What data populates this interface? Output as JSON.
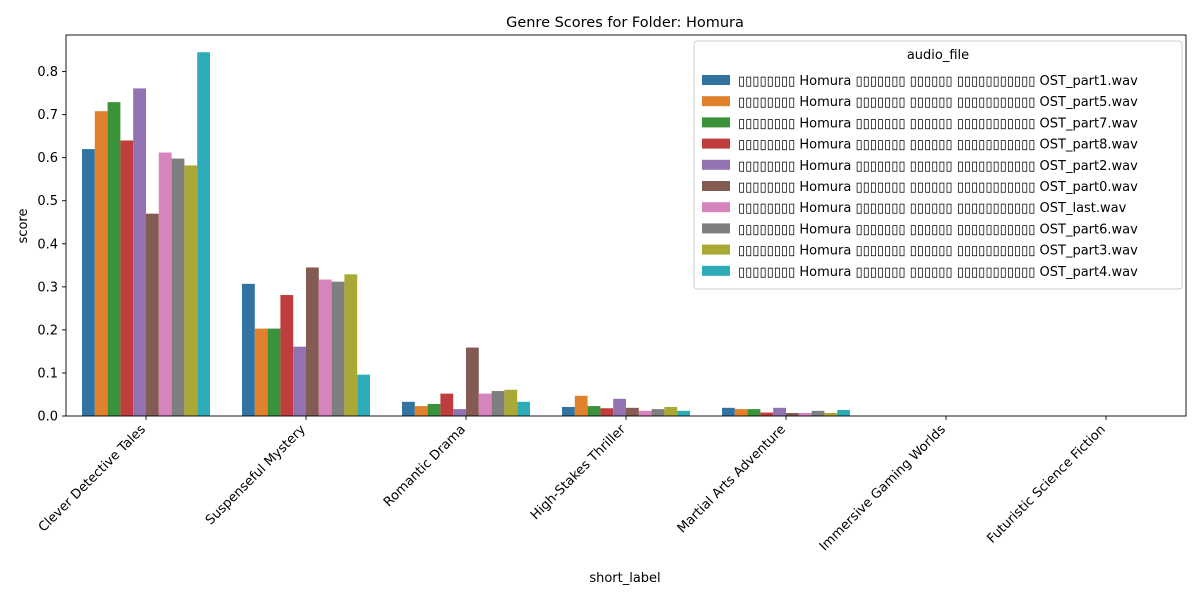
{
  "chart_data": {
    "type": "bar",
    "title": "Genre Scores for Folder: Homura",
    "xlabel": "short_label",
    "ylabel": "score",
    "ylim": [
      0,
      0.885
    ],
    "yticks": [
      0.0,
      0.1,
      0.2,
      0.3,
      0.4,
      0.5,
      0.6,
      0.7,
      0.8
    ],
    "grid": false,
    "legend_title": "audio_file",
    "legend_position": "top-right",
    "categories": [
      "Clever Detective Tales",
      "Suspenseful Mystery",
      "Romantic Drama",
      "High-Stakes Thriller",
      "Martial Arts Adventure",
      "Immersive Gaming Worlds",
      "Futuristic Science Fiction"
    ],
    "series": [
      {
        "name": "▯▯▯▯▯▯▯▯ Homura  ▯▯▯▯▯▯▯ ▯▯▯▯▯▯ ▯▯▯▯▯▯▯▯▯▯▯ OST_part1.wav",
        "color": "#3274a1",
        "values": [
          0.62,
          0.307,
          0.033,
          0.021,
          0.019,
          0.0,
          0.0
        ]
      },
      {
        "name": "▯▯▯▯▯▯▯▯ Homura  ▯▯▯▯▯▯▯ ▯▯▯▯▯▯ ▯▯▯▯▯▯▯▯▯▯▯ OST_part5.wav",
        "color": "#e1812c",
        "values": [
          0.708,
          0.203,
          0.023,
          0.047,
          0.016,
          0.0,
          0.0
        ]
      },
      {
        "name": "▯▯▯▯▯▯▯▯ Homura  ▯▯▯▯▯▯▯ ▯▯▯▯▯▯ ▯▯▯▯▯▯▯▯▯▯▯ OST_part7.wav",
        "color": "#3a923a",
        "values": [
          0.729,
          0.203,
          0.028,
          0.023,
          0.016,
          0.0,
          0.0
        ]
      },
      {
        "name": "▯▯▯▯▯▯▯▯ Homura  ▯▯▯▯▯▯▯ ▯▯▯▯▯▯ ▯▯▯▯▯▯▯▯▯▯▯ OST_part8.wav",
        "color": "#c03d3e",
        "values": [
          0.64,
          0.281,
          0.052,
          0.018,
          0.008,
          0.0,
          0.0
        ]
      },
      {
        "name": "▯▯▯▯▯▯▯▯ Homura  ▯▯▯▯▯▯▯ ▯▯▯▯▯▯ ▯▯▯▯▯▯▯▯▯▯▯ OST_part2.wav",
        "color": "#9372b2",
        "values": [
          0.761,
          0.161,
          0.016,
          0.04,
          0.019,
          0.0,
          0.0
        ]
      },
      {
        "name": "▯▯▯▯▯▯▯▯ Homura  ▯▯▯▯▯▯▯ ▯▯▯▯▯▯ ▯▯▯▯▯▯▯▯▯▯▯ OST_part0.wav",
        "color": "#845b53",
        "values": [
          0.47,
          0.345,
          0.159,
          0.019,
          0.007,
          0.0,
          0.0
        ]
      },
      {
        "name": "▯▯▯▯▯▯▯▯ Homura  ▯▯▯▯▯▯▯ ▯▯▯▯▯▯ ▯▯▯▯▯▯▯▯▯▯▯ OST_last.wav",
        "color": "#d684bd",
        "values": [
          0.612,
          0.317,
          0.052,
          0.012,
          0.007,
          0.0,
          0.0
        ]
      },
      {
        "name": "▯▯▯▯▯▯▯▯ Homura  ▯▯▯▯▯▯▯ ▯▯▯▯▯▯ ▯▯▯▯▯▯▯▯▯▯▯ OST_part6.wav",
        "color": "#7f7f7f",
        "values": [
          0.598,
          0.312,
          0.058,
          0.016,
          0.012,
          0.0,
          0.0
        ]
      },
      {
        "name": "▯▯▯▯▯▯▯▯ Homura  ▯▯▯▯▯▯▯ ▯▯▯▯▯▯ ▯▯▯▯▯▯▯▯▯▯▯ OST_part3.wav",
        "color": "#a9aa35",
        "values": [
          0.582,
          0.329,
          0.061,
          0.021,
          0.007,
          0.0,
          0.0
        ]
      },
      {
        "name": "▯▯▯▯▯▯▯▯ Homura  ▯▯▯▯▯▯▯ ▯▯▯▯▯▯ ▯▯▯▯▯▯▯▯▯▯▯ OST_part4.wav",
        "color": "#2eabb8",
        "values": [
          0.845,
          0.096,
          0.033,
          0.012,
          0.014,
          0.0,
          0.0
        ]
      }
    ]
  }
}
